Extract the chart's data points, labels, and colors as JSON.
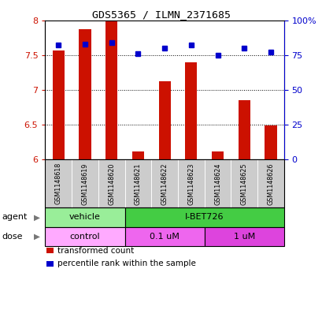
{
  "title": "GDS5365 / ILMN_2371685",
  "samples": [
    "GSM1148618",
    "GSM1148619",
    "GSM1148620",
    "GSM1148621",
    "GSM1148622",
    "GSM1148623",
    "GSM1148624",
    "GSM1148625",
    "GSM1148626"
  ],
  "bar_values": [
    7.57,
    7.87,
    7.98,
    6.12,
    7.12,
    7.39,
    6.12,
    6.85,
    6.49
  ],
  "percentile_values": [
    82,
    83,
    84,
    76,
    80,
    82,
    75,
    80,
    77
  ],
  "bar_color": "#cc1100",
  "percentile_color": "#0000cc",
  "ylim": [
    6.0,
    8.0
  ],
  "yticks": [
    6.0,
    6.5,
    7.0,
    7.5,
    8.0
  ],
  "right_yticks": [
    0,
    25,
    50,
    75,
    100
  ],
  "right_yticklabels": [
    "0",
    "25",
    "50",
    "75",
    "100%"
  ],
  "agent_groups": [
    {
      "label": "vehicle",
      "start": 0,
      "end": 3,
      "color": "#99ee99"
    },
    {
      "label": "I-BET726",
      "start": 3,
      "end": 9,
      "color": "#44cc44"
    }
  ],
  "dose_groups": [
    {
      "label": "control",
      "start": 0,
      "end": 3,
      "color": "#ffaaff"
    },
    {
      "label": "0.1 uM",
      "start": 3,
      "end": 6,
      "color": "#ee66ee"
    },
    {
      "label": "1 uM",
      "start": 6,
      "end": 9,
      "color": "#dd44dd"
    }
  ],
  "bar_width": 0.45,
  "dotted_lines": [
    6.5,
    7.0,
    7.5
  ],
  "legend_items": [
    {
      "label": "transformed count",
      "color": "#cc1100"
    },
    {
      "label": "percentile rank within the sample",
      "color": "#0000cc"
    }
  ],
  "sample_bg_color": "#cccccc",
  "sample_border_color": "#888888"
}
